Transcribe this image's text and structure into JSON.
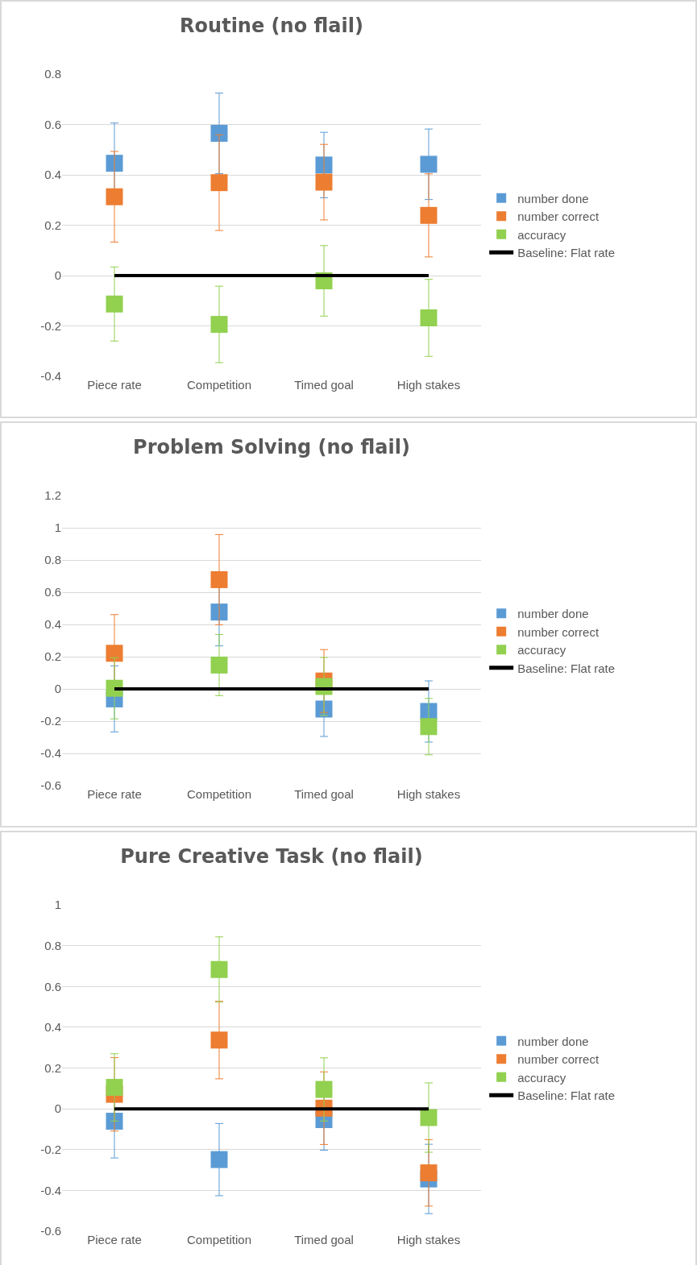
{
  "chart_data": [
    {
      "type": "scatter",
      "title": "Routine (no flail)",
      "categories": [
        "Piece rate",
        "Competition",
        "Timed goal",
        "High stakes"
      ],
      "ylim": [
        -0.4,
        0.8
      ],
      "yticks": [
        -0.4,
        -0.2,
        0,
        0.2,
        0.4,
        0.6,
        0.8
      ],
      "grid": "y",
      "legend": "right",
      "marker": "square",
      "series": [
        {
          "name": "Baseline: Flat rate",
          "type": "line",
          "marker": "none",
          "color": "#000000",
          "values": [
            0,
            0,
            0,
            0
          ]
        },
        {
          "name": "number done",
          "color": "#5b9bd5",
          "values": [
            0.446,
            0.565,
            0.439,
            0.442
          ],
          "errors": [
            0.16,
            0.16,
            0.13,
            0.14
          ]
        },
        {
          "name": "number correct",
          "color": "#ed7d31",
          "values": [
            0.313,
            0.369,
            0.371,
            0.239
          ],
          "errors": [
            0.18,
            0.19,
            0.15,
            0.165
          ]
        },
        {
          "name": "accuracy",
          "color": "#92d050",
          "values": [
            -0.113,
            -0.194,
            -0.021,
            -0.168
          ],
          "errors": [
            0.147,
            0.152,
            0.14,
            0.153
          ]
        }
      ]
    },
    {
      "type": "scatter",
      "title": "Problem Solving (no flail)",
      "categories": [
        "Piece rate",
        "Competition",
        "Timed goal",
        "High stakes"
      ],
      "ylim": [
        -0.6,
        1.2
      ],
      "yticks": [
        -0.6,
        -0.4,
        -0.2,
        0,
        0.2,
        0.4,
        0.6,
        0.8,
        1,
        1.2
      ],
      "grid": "y",
      "legend": "right",
      "marker": "square",
      "series": [
        {
          "name": "Baseline: Flat rate",
          "type": "line",
          "marker": "none",
          "color": "#000000",
          "values": [
            0,
            0,
            0,
            0
          ]
        },
        {
          "name": "number done",
          "color": "#5b9bd5",
          "values": [
            -0.062,
            0.477,
            -0.125,
            -0.14
          ],
          "errors": [
            0.205,
            0.21,
            0.17,
            0.19
          ]
        },
        {
          "name": "number correct",
          "color": "#ed7d31",
          "values": [
            0.221,
            0.678,
            0.049,
            null
          ],
          "errors": [
            0.24,
            0.28,
            0.195,
            null
          ]
        },
        {
          "name": "accuracy",
          "color": "#92d050",
          "values": [
            0.004,
            0.148,
            0.015,
            -0.234
          ],
          "errors": [
            0.19,
            0.19,
            0.18,
            0.175
          ]
        }
      ]
    },
    {
      "type": "scatter",
      "title": "Pure Creative Task (no flail)",
      "categories": [
        "Piece rate",
        "Competition",
        "Timed goal",
        "High stakes"
      ],
      "ylim": [
        -0.6,
        1
      ],
      "yticks": [
        -0.6,
        -0.4,
        -0.2,
        0,
        0.2,
        0.4,
        0.6,
        0.8,
        1
      ],
      "grid": "y",
      "legend": "right",
      "marker": "square",
      "series": [
        {
          "name": "Baseline: Flat rate",
          "type": "line",
          "marker": "none",
          "color": "#000000",
          "values": [
            0,
            0,
            0,
            0
          ]
        },
        {
          "name": "number done",
          "color": "#5b9bd5",
          "values": [
            -0.061,
            -0.249,
            -0.053,
            -0.344
          ],
          "errors": [
            0.18,
            0.177,
            0.15,
            0.17
          ]
        },
        {
          "name": "number correct",
          "color": "#ed7d31",
          "values": [
            0.071,
            0.337,
            0.003,
            -0.314
          ],
          "errors": [
            0.18,
            0.19,
            0.178,
            0.163
          ]
        },
        {
          "name": "accuracy",
          "color": "#92d050",
          "values": [
            0.105,
            0.683,
            0.095,
            -0.043
          ],
          "errors": [
            0.165,
            0.16,
            0.155,
            0.17
          ]
        }
      ]
    }
  ]
}
